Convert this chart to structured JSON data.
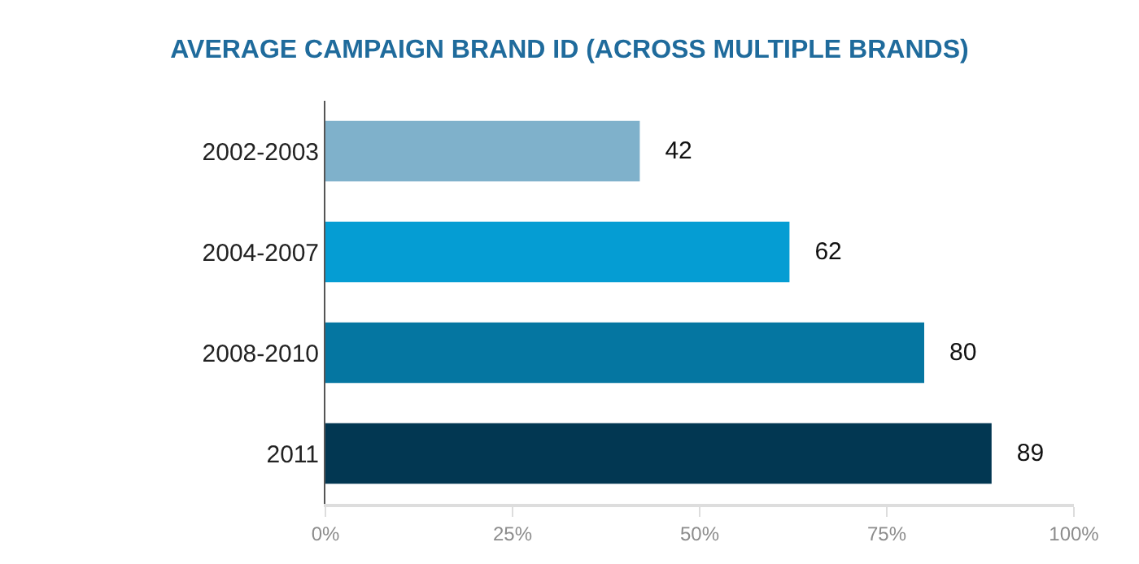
{
  "chart_data": {
    "type": "bar",
    "orientation": "horizontal",
    "title": "AVERAGE CAMPAIGN BRAND ID (ACROSS MULTIPLE BRANDS)",
    "categories": [
      "2002-2003",
      "2004-2007",
      "2008-2010",
      "2011"
    ],
    "values": [
      42,
      62,
      80,
      89
    ],
    "colors": [
      "#7fb1cb",
      "#059dd3",
      "#0576a1",
      "#023752"
    ],
    "xlim": [
      0,
      100
    ],
    "xticks": [
      {
        "value": 0,
        "label": "0%"
      },
      {
        "value": 25,
        "label": "25%"
      },
      {
        "value": 50,
        "label": "50%"
      },
      {
        "value": 75,
        "label": "75%"
      },
      {
        "value": 100,
        "label": "100%"
      }
    ],
    "data_labels": true
  }
}
